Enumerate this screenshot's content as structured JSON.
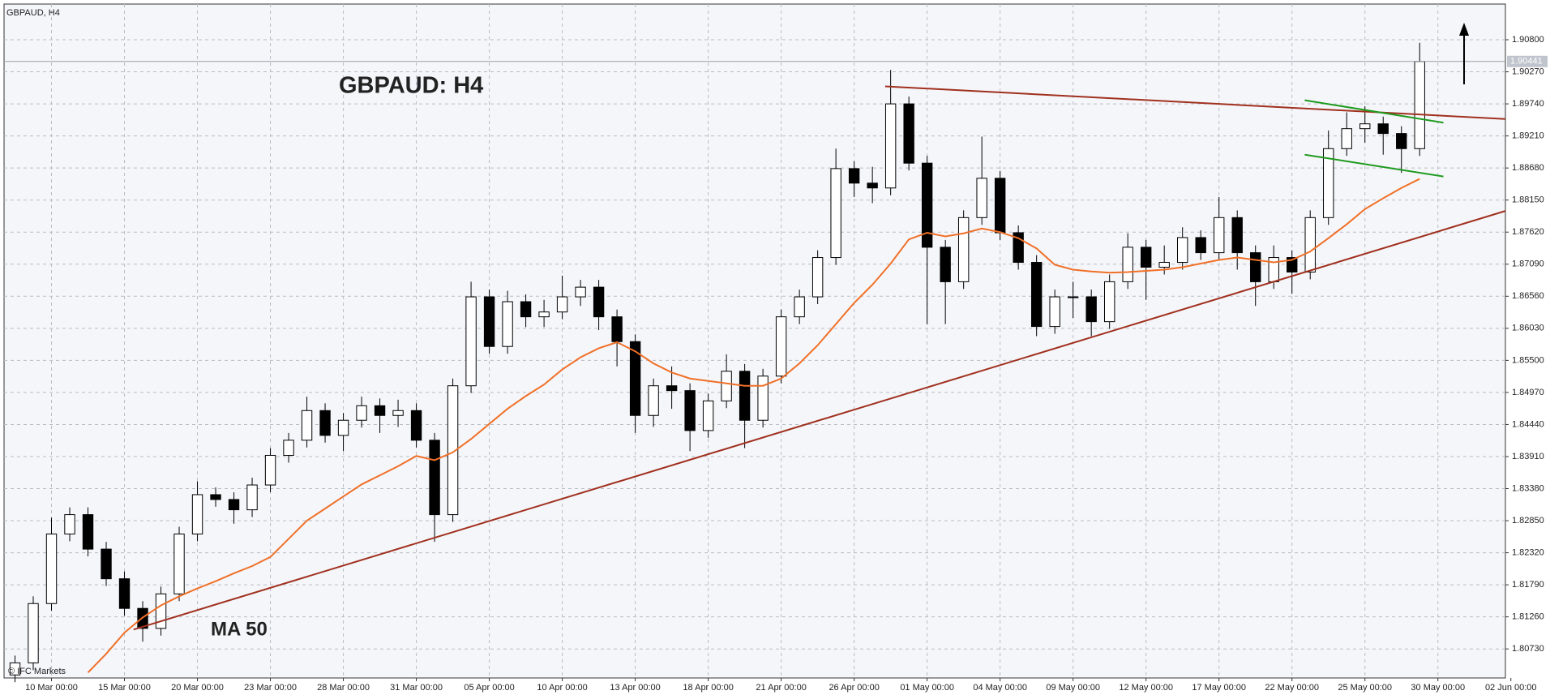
{
  "chart_data": {
    "type": "candlestick",
    "symbol_label": "GBPAUD, H4",
    "title": "GBPAUD: H4",
    "ma_label": "MA 50",
    "copyright": "© IFC Markets",
    "up_color": "#ffffff",
    "down_color": "#000000",
    "candles": [
      [
        1.803,
        1.8062,
        1.8018,
        1.805
      ],
      [
        1.805,
        1.816,
        1.8038,
        1.8148
      ],
      [
        1.8148,
        1.829,
        1.8136,
        1.8263
      ],
      [
        1.8263,
        1.8307,
        1.8251,
        1.8295
      ],
      [
        1.8295,
        1.8307,
        1.8226,
        1.8238
      ],
      [
        1.8238,
        1.825,
        1.8177,
        1.8189
      ],
      [
        1.8189,
        1.8201,
        1.8128,
        1.814
      ],
      [
        1.814,
        1.8152,
        1.8085,
        1.8107
      ],
      [
        1.8107,
        1.8176,
        1.8095,
        1.8164
      ],
      [
        1.8164,
        1.8275,
        1.8152,
        1.8263
      ],
      [
        1.8263,
        1.835,
        1.8251,
        1.8328
      ],
      [
        1.8328,
        1.834,
        1.8308,
        1.832
      ],
      [
        1.832,
        1.8332,
        1.828,
        1.8303
      ],
      [
        1.8303,
        1.8356,
        1.8291,
        1.8344
      ],
      [
        1.8344,
        1.8405,
        1.8332,
        1.8393
      ],
      [
        1.8393,
        1.843,
        1.8381,
        1.8418
      ],
      [
        1.8418,
        1.849,
        1.8406,
        1.8467
      ],
      [
        1.8467,
        1.8479,
        1.8414,
        1.8426
      ],
      [
        1.8426,
        1.8463,
        1.84,
        1.8451
      ],
      [
        1.8451,
        1.849,
        1.8439,
        1.8475
      ],
      [
        1.8475,
        1.8487,
        1.843,
        1.8459
      ],
      [
        1.8459,
        1.8485,
        1.844,
        1.8467
      ],
      [
        1.8467,
        1.8479,
        1.8406,
        1.8418
      ],
      [
        1.8418,
        1.843,
        1.825,
        1.8295
      ],
      [
        1.8295,
        1.852,
        1.8283,
        1.8508
      ],
      [
        1.8508,
        1.868,
        1.8496,
        1.8655
      ],
      [
        1.8655,
        1.8667,
        1.8561,
        1.8573
      ],
      [
        1.8573,
        1.8665,
        1.8561,
        1.8647
      ],
      [
        1.8647,
        1.8659,
        1.8605,
        1.8622
      ],
      [
        1.8622,
        1.865,
        1.8605,
        1.863
      ],
      [
        1.863,
        1.869,
        1.8618,
        1.8655
      ],
      [
        1.8655,
        1.8683,
        1.864,
        1.8671
      ],
      [
        1.8671,
        1.8683,
        1.86,
        1.8622
      ],
      [
        1.8622,
        1.8634,
        1.854,
        1.8581
      ],
      [
        1.8581,
        1.8593,
        1.843,
        1.8459
      ],
      [
        1.8459,
        1.852,
        1.844,
        1.8508
      ],
      [
        1.8508,
        1.854,
        1.847,
        1.85
      ],
      [
        1.85,
        1.8512,
        1.84,
        1.8434
      ],
      [
        1.8434,
        1.8495,
        1.8422,
        1.8483
      ],
      [
        1.8483,
        1.856,
        1.8471,
        1.8532
      ],
      [
        1.8532,
        1.8544,
        1.8405,
        1.8451
      ],
      [
        1.8451,
        1.8536,
        1.8439,
        1.8524
      ],
      [
        1.8524,
        1.8634,
        1.8512,
        1.8622
      ],
      [
        1.8622,
        1.8667,
        1.861,
        1.8655
      ],
      [
        1.8655,
        1.8732,
        1.8643,
        1.872
      ],
      [
        1.872,
        1.89,
        1.8708,
        1.8867
      ],
      [
        1.8867,
        1.8879,
        1.882,
        1.8843
      ],
      [
        1.8843,
        1.887,
        1.881,
        1.8835
      ],
      [
        1.8835,
        1.903,
        1.8823,
        1.8974
      ],
      [
        1.8974,
        1.8986,
        1.8864,
        1.8876
      ],
      [
        1.8876,
        1.8888,
        1.861,
        1.8737
      ],
      [
        1.8737,
        1.8749,
        1.861,
        1.868
      ],
      [
        1.868,
        1.8798,
        1.8668,
        1.8786
      ],
      [
        1.8786,
        1.892,
        1.8774,
        1.8851
      ],
      [
        1.8851,
        1.8863,
        1.8749,
        1.8761
      ],
      [
        1.8761,
        1.8773,
        1.87,
        1.8712
      ],
      [
        1.8712,
        1.8724,
        1.859,
        1.8606
      ],
      [
        1.8606,
        1.8667,
        1.8594,
        1.8655
      ],
      [
        1.8655,
        1.868,
        1.862,
        1.8655
      ],
      [
        1.8655,
        1.8667,
        1.859,
        1.8614
      ],
      [
        1.8614,
        1.8692,
        1.8602,
        1.868
      ],
      [
        1.868,
        1.876,
        1.8668,
        1.8737
      ],
      [
        1.8737,
        1.8749,
        1.865,
        1.8704
      ],
      [
        1.8704,
        1.874,
        1.8692,
        1.8712
      ],
      [
        1.8712,
        1.877,
        1.87,
        1.8753
      ],
      [
        1.8753,
        1.8765,
        1.8716,
        1.8728
      ],
      [
        1.8728,
        1.882,
        1.8716,
        1.8786
      ],
      [
        1.8786,
        1.8798,
        1.87,
        1.8728
      ],
      [
        1.8728,
        1.874,
        1.864,
        1.868
      ],
      [
        1.868,
        1.874,
        1.8668,
        1.872
      ],
      [
        1.872,
        1.8732,
        1.866,
        1.8696
      ],
      [
        1.8696,
        1.8798,
        1.8684,
        1.8786
      ],
      [
        1.8786,
        1.893,
        1.8774,
        1.89
      ],
      [
        1.89,
        1.896,
        1.8888,
        1.8933
      ],
      [
        1.8933,
        1.897,
        1.891,
        1.8941
      ],
      [
        1.8941,
        1.8953,
        1.889,
        1.8925
      ],
      [
        1.8925,
        1.8937,
        1.886,
        1.89
      ],
      [
        1.89,
        1.9075,
        1.8888,
        1.9044
      ]
    ],
    "ma": {
      "color": "#f07028",
      "values": [
        null,
        null,
        null,
        null,
        1.8034,
        1.8065,
        1.81,
        1.8125,
        1.8145,
        1.816,
        1.8173,
        1.8185,
        1.8198,
        1.821,
        1.8225,
        1.8255,
        1.8285,
        1.8305,
        1.8325,
        1.8345,
        1.836,
        1.8375,
        1.8392,
        1.8385,
        1.8398,
        1.842,
        1.8445,
        1.847,
        1.8491,
        1.851,
        1.8535,
        1.8555,
        1.857,
        1.858,
        1.8565,
        1.8545,
        1.853,
        1.852,
        1.8516,
        1.8512,
        1.8508,
        1.8508,
        1.852,
        1.8545,
        1.8575,
        1.861,
        1.8645,
        1.8675,
        1.871,
        1.875,
        1.8761,
        1.8755,
        1.876,
        1.8768,
        1.8762,
        1.8752,
        1.8735,
        1.8708,
        1.87,
        1.8697,
        1.8695,
        1.8696,
        1.8698,
        1.87,
        1.8704,
        1.871,
        1.8716,
        1.872,
        1.8716,
        1.8712,
        1.8716,
        1.873,
        1.8752,
        1.8775,
        1.88,
        1.8818,
        1.8835,
        1.885
      ]
    },
    "trendlines": [
      {
        "color": "#a0301e",
        "points": [
          [
            6.5,
            1.8105
          ],
          [
            81.7,
            1.8797
          ]
        ]
      },
      {
        "color": "#a0301e",
        "points": [
          [
            47.7,
            1.9003
          ],
          [
            81.7,
            1.8949
          ]
        ]
      },
      {
        "color": "#1e9a1e",
        "points": [
          [
            70.7,
            1.898
          ],
          [
            78.3,
            1.8943
          ]
        ]
      },
      {
        "color": "#1e9a1e",
        "points": [
          [
            70.7,
            1.889
          ],
          [
            78.3,
            1.8854
          ]
        ]
      }
    ],
    "current_price": 1.90441,
    "xlim": [
      -0.6,
      81.7
    ],
    "ylim": [
      1.8025,
      1.9139
    ],
    "grid": true,
    "xticks": [
      {
        "value": 2,
        "label": "10 Mar 00:00"
      },
      {
        "value": 6,
        "label": "15 Mar 00:00"
      },
      {
        "value": 10,
        "label": "20 Mar 00:00"
      },
      {
        "value": 14,
        "label": "23 Mar 00:00"
      },
      {
        "value": 18,
        "label": "28 Mar 00:00"
      },
      {
        "value": 22,
        "label": "31 Mar 00:00"
      },
      {
        "value": 26,
        "label": "05 Apr 00:00"
      },
      {
        "value": 30,
        "label": "10 Apr 00:00"
      },
      {
        "value": 34,
        "label": "13 Apr 00:00"
      },
      {
        "value": 38,
        "label": "18 Apr 00:00"
      },
      {
        "value": 42,
        "label": "21 Apr 00:00"
      },
      {
        "value": 46,
        "label": "26 Apr 00:00"
      },
      {
        "value": 50,
        "label": "01 May 00:00"
      },
      {
        "value": 54,
        "label": "04 May 00:00"
      },
      {
        "value": 58,
        "label": "09 May 00:00"
      },
      {
        "value": 62,
        "label": "12 May 00:00"
      },
      {
        "value": 66,
        "label": "17 May 00:00"
      },
      {
        "value": 70,
        "label": "22 May 00:00"
      },
      {
        "value": 74,
        "label": "25 May 00:00"
      },
      {
        "value": 78,
        "label": "30 May 00:00"
      },
      {
        "value": 82,
        "label": "02 Jun 00:00"
      }
    ],
    "yticks": [
      {
        "value": 1.908,
        "label": "1.90800"
      },
      {
        "value": 1.9027,
        "label": "1.90270"
      },
      {
        "value": 1.8974,
        "label": "1.89740"
      },
      {
        "value": 1.8921,
        "label": "1.89210"
      },
      {
        "value": 1.8868,
        "label": "1.88680"
      },
      {
        "value": 1.8815,
        "label": "1.88150"
      },
      {
        "value": 1.8762,
        "label": "1.87620"
      },
      {
        "value": 1.8709,
        "label": "1.87090"
      },
      {
        "value": 1.8656,
        "label": "1.86560"
      },
      {
        "value": 1.8603,
        "label": "1.86030"
      },
      {
        "value": 1.855,
        "label": "1.85500"
      },
      {
        "value": 1.8497,
        "label": "1.84970"
      },
      {
        "value": 1.8444,
        "label": "1.84440"
      },
      {
        "value": 1.8391,
        "label": "1.83910"
      },
      {
        "value": 1.8338,
        "label": "1.83380"
      },
      {
        "value": 1.8285,
        "label": "1.82850"
      },
      {
        "value": 1.8232,
        "label": "1.82320"
      },
      {
        "value": 1.8179,
        "label": "1.81790"
      },
      {
        "value": 1.8126,
        "label": "1.81260"
      },
      {
        "value": 1.8073,
        "label": "1.80730"
      }
    ]
  }
}
